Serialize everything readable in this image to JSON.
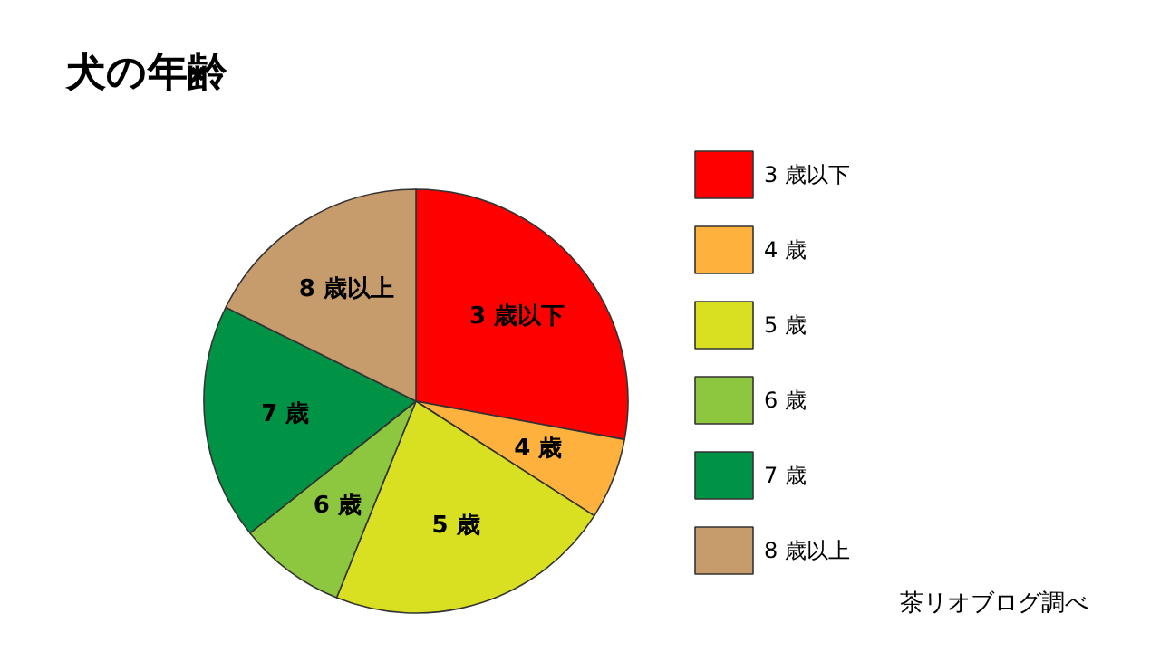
{
  "chart_data": {
    "type": "pie",
    "title": "犬の年齢",
    "categories": [
      "3 歳以下",
      "4 歳",
      "5 歳",
      "6 歳",
      "7 歳",
      "8 歳以上"
    ],
    "values": [
      27.9,
      6.2,
      22.0,
      8.2,
      18.0,
      17.7
    ],
    "colors": [
      "#ff0000",
      "#ffb13e",
      "#d9e021",
      "#8dc63f",
      "#009245",
      "#c69c6d"
    ],
    "legend": "right",
    "annotations": [
      "茶リオブログ調べ"
    ]
  }
}
